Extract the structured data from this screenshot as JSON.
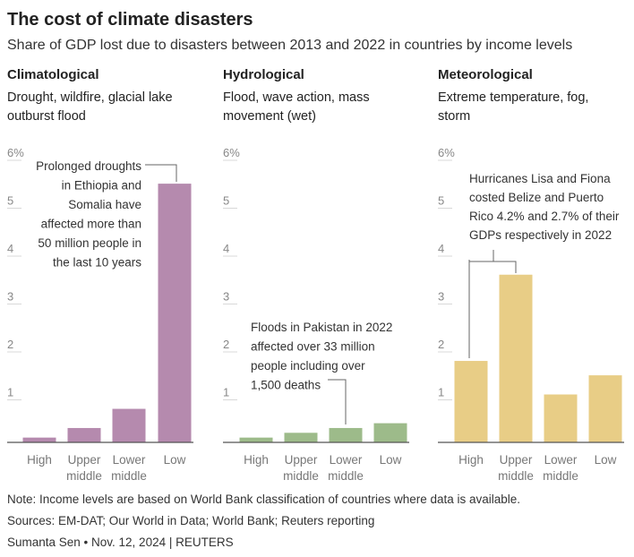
{
  "header": {
    "title": "The cost of climate disasters",
    "subtitle": "Share of GDP lost due to disasters between 2013 and 2022 in countries by income levels"
  },
  "chart_data": [
    {
      "type": "bar",
      "title": "Climatological",
      "subtitle_lines": [
        "Drought, wildfire, glacial lake",
        "outburst flood"
      ],
      "categories": [
        [
          "High"
        ],
        [
          "Upper",
          "middle"
        ],
        [
          "Lower",
          "middle"
        ],
        [
          "Low"
        ]
      ],
      "values": [
        0.1,
        0.3,
        0.7,
        5.4
      ],
      "ylim": [
        0,
        6
      ],
      "yticks": [
        "1",
        "2",
        "3",
        "4",
        "5",
        "6%"
      ],
      "color": "#b58aae",
      "annotation": {
        "lines": [
          "Prolonged droughts",
          "in Ethiopia and",
          "Somalia have",
          "affected more than",
          "50 million people in",
          "the last 10 years"
        ],
        "target_category": 3
      }
    },
    {
      "type": "bar",
      "title": "Hydrological",
      "subtitle_lines": [
        "Flood, wave action, mass",
        "movement (wet)"
      ],
      "categories": [
        [
          "High"
        ],
        [
          "Upper",
          "middle"
        ],
        [
          "Lower",
          "middle"
        ],
        [
          "Low"
        ]
      ],
      "values": [
        0.1,
        0.2,
        0.3,
        0.4
      ],
      "ylim": [
        0,
        6
      ],
      "yticks": [
        "1",
        "2",
        "3",
        "4",
        "5",
        "6%"
      ],
      "color": "#9dbb8a",
      "annotation": {
        "lines": [
          "Floods in Pakistan in 2022",
          "affected over 33 million",
          "people including over",
          "1,500 deaths"
        ],
        "target_category": 2
      }
    },
    {
      "type": "bar",
      "title": "Meteorological",
      "subtitle_lines": [
        "Extreme temperature, fog,",
        "storm"
      ],
      "categories": [
        [
          "High"
        ],
        [
          "Upper",
          "middle"
        ],
        [
          "Lower",
          "middle"
        ],
        [
          "Low"
        ]
      ],
      "values": [
        1.7,
        3.5,
        1.0,
        1.4
      ],
      "ylim": [
        0,
        6
      ],
      "yticks": [
        "1",
        "2",
        "3",
        "4",
        "5",
        "6%"
      ],
      "color": "#e8cd86",
      "annotation": {
        "lines": [
          "Hurricanes Lisa and Fiona",
          "costed Belize and Puerto",
          "Rico 4.2% and 2.7% of their",
          "GDPs respectively in 2022"
        ],
        "target_categories": [
          0,
          1
        ]
      }
    }
  ],
  "footer": {
    "note": "Note: Income levels are based on World Bank classification of countries where data is available.",
    "sources": "Sources: EM-DAT; Our World in Data; World Bank; Reuters reporting",
    "byline": "Sumanta Sen • Nov. 12, 2024 | REUTERS"
  }
}
